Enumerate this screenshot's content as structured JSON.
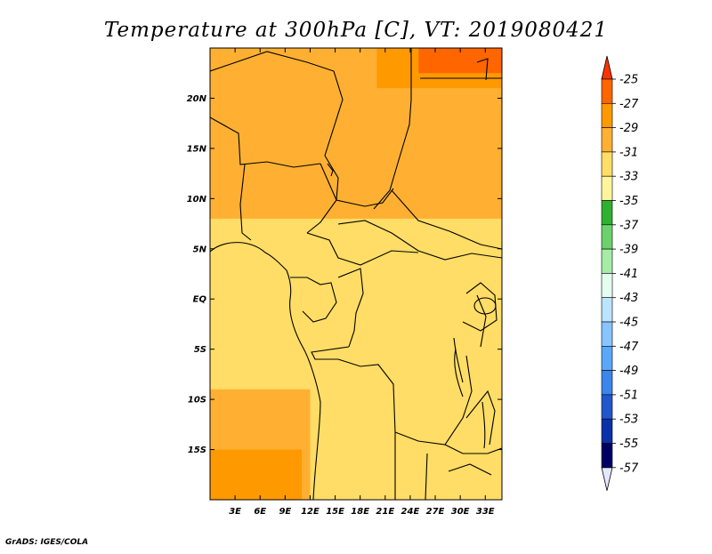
{
  "title": "Temperature at 300hPa [C], VT: 2019080421",
  "credit": "GrADS: IGES/COLA",
  "map": {
    "lon_range": [
      0,
      35
    ],
    "lat_range": [
      -20,
      25
    ],
    "lat_ticks": [
      {
        "lat": 20,
        "label": "20N"
      },
      {
        "lat": 15,
        "label": "15N"
      },
      {
        "lat": 10,
        "label": "10N"
      },
      {
        "lat": 5,
        "label": "5N"
      },
      {
        "lat": 0,
        "label": "EQ"
      },
      {
        "lat": -5,
        "label": "5S"
      },
      {
        "lat": -10,
        "label": "10S"
      },
      {
        "lat": -15,
        "label": "15S"
      }
    ],
    "lon_ticks": [
      {
        "lon": 3,
        "label": "3E"
      },
      {
        "lon": 6,
        "label": "6E"
      },
      {
        "lon": 9,
        "label": "9E"
      },
      {
        "lon": 12,
        "label": "12E"
      },
      {
        "lon": 15,
        "label": "15E"
      },
      {
        "lon": 18,
        "label": "18E"
      },
      {
        "lon": 21,
        "label": "21E"
      },
      {
        "lon": 24,
        "label": "24E"
      },
      {
        "lon": 27,
        "label": "27E"
      },
      {
        "lon": 30,
        "label": "30E"
      },
      {
        "lon": 33,
        "label": "33E"
      }
    ]
  },
  "colorbar": {
    "labels": [
      "-25",
      "-27",
      "-29",
      "-31",
      "-33",
      "-35",
      "-37",
      "-39",
      "-41",
      "-43",
      "-45",
      "-47",
      "-49",
      "-51",
      "-53",
      "-55",
      "-57"
    ],
    "colors": [
      "#ff3300",
      "#ff6600",
      "#ff9900",
      "#ffb032",
      "#ffdd66",
      "#fff59b",
      "#30b030",
      "#6bd26b",
      "#a6eba6",
      "#e4fff0",
      "#bbe4ff",
      "#88c4ff",
      "#5aa8f8",
      "#3a86ec",
      "#2058cc",
      "#0a32a8",
      "#000064",
      "#e6e6ff"
    ]
  },
  "regions": [
    {
      "level": "-31",
      "color": "#ffdd66",
      "lon": [
        0,
        35
      ],
      "lat": [
        -20,
        25
      ]
    },
    {
      "level": "-29",
      "color": "#ffb032",
      "lon": [
        0,
        35
      ],
      "lat": [
        8,
        25
      ]
    },
    {
      "level": "-29",
      "color": "#ffb032",
      "lon": [
        0,
        12
      ],
      "lat": [
        -20,
        -9
      ]
    },
    {
      "level": "-27",
      "color": "#ff9900",
      "lon": [
        0,
        11
      ],
      "lat": [
        -20,
        -15
      ]
    },
    {
      "level": "-27",
      "color": "#ff9900",
      "lon": [
        20,
        35
      ],
      "lat": [
        21,
        25
      ]
    },
    {
      "level": "-25",
      "color": "#ff6600",
      "lon": [
        25,
        35
      ],
      "lat": [
        22.5,
        25
      ]
    }
  ]
}
